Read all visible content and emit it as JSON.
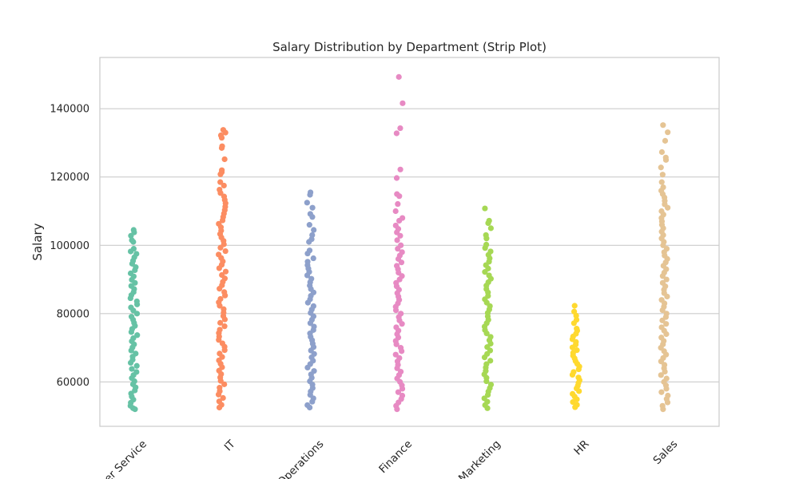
{
  "chart_data": {
    "type": "scatter",
    "subtype": "strip",
    "title": "Salary Distribution by Department (Strip Plot)",
    "xlabel": "",
    "ylabel": "Salary",
    "ylim": [
      47000,
      155000
    ],
    "yticks": [
      60000,
      80000,
      100000,
      120000,
      140000
    ],
    "ytick_labels": [
      "60000",
      "80000",
      "100000",
      "120000",
      "140000"
    ],
    "grid": true,
    "grid_axis": "y",
    "x_tick_rotation": 45,
    "categories": [
      "Customer Service",
      "IT",
      "Operations",
      "Finance",
      "Marketing",
      "HR",
      "Sales"
    ],
    "category_labels_visible": [
      "er Service",
      "IT",
      "Operations",
      "Finance",
      "Marketing",
      "HR",
      "Sales"
    ],
    "series": [
      {
        "category": "Customer Service",
        "color": "#66c2a5",
        "values": [
          104500,
          103800,
          102800,
          101500,
          101000,
          99000,
          98200,
          97500,
          96500,
          95500,
          94600,
          93600,
          92700,
          91800,
          90900,
          89900,
          89000,
          88100,
          87200,
          86300,
          85400,
          84500,
          83600,
          82700,
          81800,
          80900,
          80000,
          79100,
          78200,
          77300,
          76400,
          75500,
          74600,
          73700,
          72800,
          71900,
          71000,
          70100,
          69200,
          68300,
          67400,
          66500,
          65600,
          64700,
          63800,
          62900,
          62000,
          61100,
          60200,
          59300,
          58400,
          57500,
          56600,
          55700,
          54800,
          53900,
          53000,
          52300,
          52000
        ]
      },
      {
        "category": "IT",
        "color": "#fc8d62",
        "values": [
          133800,
          133000,
          132200,
          131500,
          129000,
          128500,
          125200,
          122000,
          121400,
          120800,
          118500,
          117500,
          116300,
          115300,
          114300,
          113300,
          112300,
          111300,
          110300,
          109300,
          108300,
          107300,
          106300,
          105300,
          104300,
          103300,
          102300,
          101300,
          100300,
          99300,
          98300,
          97300,
          96300,
          95300,
          94300,
          93300,
          92300,
          91300,
          90300,
          89300,
          88300,
          87300,
          86300,
          85300,
          84300,
          83300,
          82300,
          81300,
          80300,
          79300,
          78300,
          77300,
          76300,
          75300,
          74300,
          73300,
          72300,
          71300,
          70300,
          69300,
          68300,
          67300,
          66300,
          65300,
          64300,
          63300,
          62300,
          61300,
          60300,
          59300,
          58300,
          57300,
          56300,
          55300,
          54300,
          53300,
          52500
        ]
      },
      {
        "category": "Operations",
        "color": "#8da0cb",
        "values": [
          115500,
          114800,
          112500,
          111000,
          109200,
          108300,
          106000,
          104500,
          103000,
          101800,
          101000,
          98500,
          97600,
          96200,
          95200,
          94200,
          93200,
          92200,
          91200,
          90200,
          89200,
          88200,
          87200,
          86200,
          85200,
          84200,
          83200,
          82200,
          81200,
          80200,
          79200,
          78200,
          77200,
          76200,
          75200,
          74200,
          73200,
          72200,
          71200,
          70200,
          69200,
          68200,
          67200,
          66200,
          65200,
          64200,
          63200,
          62200,
          61200,
          60200,
          59200,
          58200,
          57200,
          56200,
          55200,
          54200,
          53200,
          52500
        ]
      },
      {
        "category": "Finance",
        "color": "#e78ac3",
        "values": [
          149300,
          141600,
          134300,
          132800,
          122200,
          119700,
          115000,
          114400,
          112100,
          110000,
          108000,
          107200,
          105800,
          104800,
          103800,
          102800,
          101500,
          100000,
          99000,
          98000,
          97000,
          96000,
          95000,
          94000,
          93000,
          92000,
          91000,
          90000,
          89000,
          88000,
          87000,
          86000,
          85000,
          84000,
          83000,
          82000,
          81000,
          80000,
          79000,
          78000,
          77000,
          76000,
          75000,
          74000,
          73000,
          72000,
          71000,
          70000,
          69000,
          68000,
          67000,
          66000,
          65000,
          64000,
          63000,
          62000,
          61000,
          60000,
          59000,
          58000,
          57000,
          56000,
          55000,
          54000,
          53000,
          52000
        ]
      },
      {
        "category": "Marketing",
        "color": "#a6d854",
        "values": [
          110800,
          107200,
          106500,
          105000,
          103000,
          102000,
          100200,
          99200,
          98200,
          97200,
          96200,
          95200,
          94200,
          93200,
          92200,
          91200,
          90200,
          89200,
          88200,
          87200,
          86200,
          85200,
          84200,
          83200,
          82200,
          81200,
          80200,
          79200,
          78200,
          77200,
          76200,
          75200,
          74200,
          73200,
          72200,
          71200,
          70200,
          69200,
          68200,
          67200,
          66200,
          65200,
          64200,
          63200,
          62200,
          61200,
          60200,
          59200,
          58200,
          57200,
          56200,
          55200,
          54200,
          53200,
          52300
        ]
      },
      {
        "category": "HR",
        "color": "#ffd92f",
        "values": [
          82300,
          80600,
          79400,
          78200,
          77200,
          75600,
          75000,
          74100,
          73300,
          72500,
          71700,
          70900,
          70100,
          69300,
          68500,
          67700,
          66900,
          66100,
          65300,
          64500,
          63700,
          62900,
          62100,
          61300,
          60500,
          59700,
          58900,
          58100,
          57300,
          56500,
          55700,
          54900,
          54100,
          53300,
          52600
        ]
      },
      {
        "category": "Sales",
        "color": "#e5c494",
        "values": [
          135200,
          133100,
          130600,
          127300,
          125700,
          125000,
          122800,
          120700,
          118500,
          117000,
          116000,
          115000,
          114000,
          113000,
          112000,
          111000,
          110000,
          109000,
          108000,
          107000,
          106000,
          105000,
          104000,
          103000,
          102000,
          101000,
          100000,
          99000,
          98000,
          97000,
          96000,
          95000,
          94000,
          93000,
          92000,
          91000,
          90000,
          89000,
          88000,
          87000,
          86000,
          85000,
          84000,
          83000,
          82000,
          81000,
          80000,
          79000,
          78000,
          77000,
          76000,
          75000,
          74000,
          73000,
          72000,
          71000,
          70000,
          69000,
          68000,
          67000,
          66000,
          65000,
          64000,
          63000,
          62000,
          61000,
          60000,
          59000,
          58000,
          57000,
          56000,
          55000,
          54000,
          53000,
          52000
        ]
      }
    ]
  }
}
